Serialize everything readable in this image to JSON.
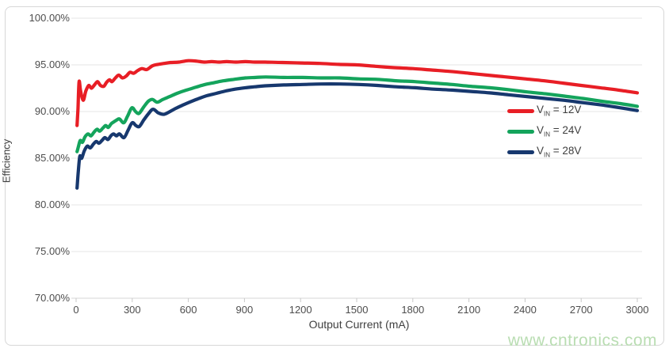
{
  "watermark": {
    "text": "www.cntronics.com",
    "color": "#b9ddb2"
  },
  "chart_data": {
    "type": "line",
    "title": "",
    "xlabel": "Output Current (mA)",
    "ylabel": "Efficiency",
    "xlim": [
      0,
      3000
    ],
    "ylim": [
      70,
      100
    ],
    "grid": "horizontal",
    "legend_position": "inside-right",
    "x_ticks": [
      {
        "v": 0,
        "label": "0"
      },
      {
        "v": 300,
        "label": "300"
      },
      {
        "v": 600,
        "label": "600"
      },
      {
        "v": 900,
        "label": "900"
      },
      {
        "v": 1200,
        "label": "1200"
      },
      {
        "v": 1500,
        "label": "1500"
      },
      {
        "v": 1800,
        "label": "1800"
      },
      {
        "v": 2100,
        "label": "2100"
      },
      {
        "v": 2400,
        "label": "2400"
      },
      {
        "v": 2700,
        "label": "2700"
      },
      {
        "v": 3000,
        "label": "3000"
      }
    ],
    "y_ticks": [
      {
        "v": 100,
        "label": "100.00%"
      },
      {
        "v": 95,
        "label": "95.00%"
      },
      {
        "v": 90,
        "label": "90.00%"
      },
      {
        "v": 85,
        "label": "85.00%"
      },
      {
        "v": 80,
        "label": "80.00%"
      },
      {
        "v": 75,
        "label": "75.00%"
      },
      {
        "v": 70,
        "label": "70.00%"
      }
    ],
    "series": [
      {
        "name": "VIN = 12V",
        "legend": {
          "pre": "V",
          "sub": "IN",
          "post": " = 12V"
        },
        "color": "#e81e25",
        "points": [
          [
            5,
            88.5
          ],
          [
            10,
            90.3
          ],
          [
            16,
            93.2
          ],
          [
            24,
            92.2
          ],
          [
            38,
            91.2
          ],
          [
            52,
            92.2
          ],
          [
            68,
            92.8
          ],
          [
            82,
            92.5
          ],
          [
            100,
            92.9
          ],
          [
            115,
            93.2
          ],
          [
            130,
            92.8
          ],
          [
            148,
            92.7
          ],
          [
            162,
            93.1
          ],
          [
            178,
            93.4
          ],
          [
            192,
            93.2
          ],
          [
            210,
            93.6
          ],
          [
            228,
            93.9
          ],
          [
            248,
            93.6
          ],
          [
            268,
            93.8
          ],
          [
            288,
            94.2
          ],
          [
            308,
            94.1
          ],
          [
            330,
            94.4
          ],
          [
            352,
            94.6
          ],
          [
            378,
            94.5
          ],
          [
            408,
            94.9
          ],
          [
            438,
            95.05
          ],
          [
            470,
            95.15
          ],
          [
            505,
            95.25
          ],
          [
            550,
            95.3
          ],
          [
            600,
            95.45
          ],
          [
            645,
            95.4
          ],
          [
            685,
            95.3
          ],
          [
            725,
            95.35
          ],
          [
            765,
            95.3
          ],
          [
            805,
            95.35
          ],
          [
            855,
            95.3
          ],
          [
            905,
            95.35
          ],
          [
            955,
            95.3
          ],
          [
            1010,
            95.3
          ],
          [
            1105,
            95.25
          ],
          [
            1205,
            95.2
          ],
          [
            1305,
            95.15
          ],
          [
            1405,
            95.05
          ],
          [
            1500,
            95.0
          ],
          [
            1600,
            94.85
          ],
          [
            1700,
            94.7
          ],
          [
            1800,
            94.6
          ],
          [
            1900,
            94.45
          ],
          [
            2000,
            94.3
          ],
          [
            2100,
            94.1
          ],
          [
            2200,
            93.9
          ],
          [
            2300,
            93.7
          ],
          [
            2400,
            93.5
          ],
          [
            2500,
            93.3
          ],
          [
            2600,
            93.05
          ],
          [
            2700,
            92.8
          ],
          [
            2800,
            92.55
          ],
          [
            2900,
            92.3
          ],
          [
            3000,
            92.0
          ]
        ]
      },
      {
        "name": "VIN = 24V",
        "legend": {
          "pre": "V",
          "sub": "IN",
          "post": " = 24V"
        },
        "color": "#14a45c",
        "points": [
          [
            5,
            85.7
          ],
          [
            12,
            86.2
          ],
          [
            22,
            86.9
          ],
          [
            34,
            86.7
          ],
          [
            48,
            87.3
          ],
          [
            64,
            87.6
          ],
          [
            80,
            87.4
          ],
          [
            96,
            87.8
          ],
          [
            112,
            88.1
          ],
          [
            126,
            87.9
          ],
          [
            142,
            88.2
          ],
          [
            158,
            88.5
          ],
          [
            172,
            88.3
          ],
          [
            188,
            88.7
          ],
          [
            202,
            88.9
          ],
          [
            218,
            89.1
          ],
          [
            232,
            89.2
          ],
          [
            255,
            88.8
          ],
          [
            275,
            89.5
          ],
          [
            298,
            90.4
          ],
          [
            318,
            90.0
          ],
          [
            336,
            89.8
          ],
          [
            362,
            90.5
          ],
          [
            386,
            91.1
          ],
          [
            408,
            91.3
          ],
          [
            434,
            91.0
          ],
          [
            464,
            91.3
          ],
          [
            500,
            91.6
          ],
          [
            540,
            91.95
          ],
          [
            590,
            92.3
          ],
          [
            640,
            92.6
          ],
          [
            690,
            92.9
          ],
          [
            740,
            93.1
          ],
          [
            790,
            93.3
          ],
          [
            845,
            93.45
          ],
          [
            905,
            93.6
          ],
          [
            960,
            93.65
          ],
          [
            1015,
            93.7
          ],
          [
            1110,
            93.65
          ],
          [
            1210,
            93.65
          ],
          [
            1310,
            93.6
          ],
          [
            1410,
            93.6
          ],
          [
            1510,
            93.5
          ],
          [
            1610,
            93.45
          ],
          [
            1710,
            93.3
          ],
          [
            1810,
            93.2
          ],
          [
            1910,
            93.05
          ],
          [
            2010,
            92.9
          ],
          [
            2110,
            92.7
          ],
          [
            2210,
            92.55
          ],
          [
            2310,
            92.35
          ],
          [
            2410,
            92.1
          ],
          [
            2510,
            91.9
          ],
          [
            2610,
            91.65
          ],
          [
            2710,
            91.4
          ],
          [
            2810,
            91.1
          ],
          [
            2910,
            90.85
          ],
          [
            3000,
            90.55
          ]
        ]
      },
      {
        "name": "VIN = 28V",
        "legend": {
          "pre": "V",
          "sub": "IN",
          "post": " = 28V"
        },
        "color": "#17386e",
        "points": [
          [
            5,
            81.8
          ],
          [
            12,
            83.6
          ],
          [
            20,
            85.2
          ],
          [
            30,
            85.0
          ],
          [
            44,
            85.8
          ],
          [
            60,
            86.3
          ],
          [
            76,
            86.1
          ],
          [
            92,
            86.5
          ],
          [
            108,
            86.8
          ],
          [
            122,
            86.6
          ],
          [
            138,
            86.9
          ],
          [
            154,
            87.2
          ],
          [
            170,
            87.0
          ],
          [
            186,
            87.4
          ],
          [
            200,
            87.6
          ],
          [
            216,
            87.4
          ],
          [
            232,
            87.6
          ],
          [
            256,
            87.2
          ],
          [
            278,
            88.0
          ],
          [
            300,
            88.8
          ],
          [
            320,
            88.5
          ],
          [
            338,
            88.4
          ],
          [
            362,
            89.1
          ],
          [
            388,
            89.8
          ],
          [
            412,
            90.25
          ],
          [
            440,
            89.85
          ],
          [
            470,
            89.7
          ],
          [
            502,
            90.0
          ],
          [
            534,
            90.35
          ],
          [
            566,
            90.65
          ],
          [
            600,
            90.95
          ],
          [
            650,
            91.35
          ],
          [
            700,
            91.7
          ],
          [
            750,
            91.95
          ],
          [
            800,
            92.2
          ],
          [
            850,
            92.4
          ],
          [
            905,
            92.55
          ],
          [
            955,
            92.65
          ],
          [
            1010,
            92.75
          ],
          [
            1110,
            92.85
          ],
          [
            1210,
            92.9
          ],
          [
            1310,
            92.95
          ],
          [
            1410,
            92.95
          ],
          [
            1510,
            92.9
          ],
          [
            1610,
            92.8
          ],
          [
            1710,
            92.65
          ],
          [
            1810,
            92.55
          ],
          [
            1910,
            92.4
          ],
          [
            2010,
            92.3
          ],
          [
            2110,
            92.15
          ],
          [
            2210,
            92.0
          ],
          [
            2310,
            91.8
          ],
          [
            2410,
            91.6
          ],
          [
            2510,
            91.4
          ],
          [
            2610,
            91.2
          ],
          [
            2710,
            90.95
          ],
          [
            2810,
            90.7
          ],
          [
            2910,
            90.4
          ],
          [
            3000,
            90.1
          ]
        ]
      }
    ],
    "style": {
      "grid_color": "#e4e4e4",
      "axis_line_color": "#d6d6d6",
      "tick_mark_color": "#c9c9c9",
      "line_width": 4.2
    }
  }
}
